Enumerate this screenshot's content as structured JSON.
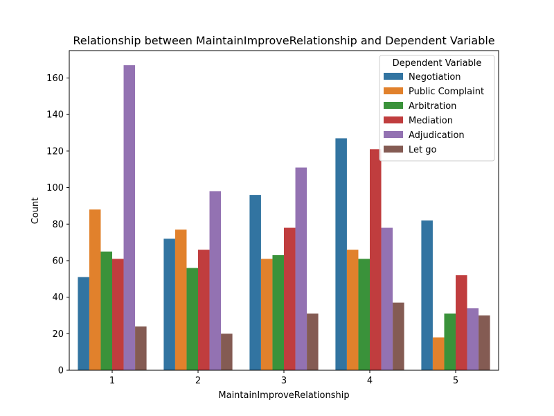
{
  "chart_data": {
    "type": "bar",
    "title": "Relationship between MaintainImproveRelationship and Dependent Variable",
    "xlabel": "MaintainImproveRelationship",
    "ylabel": "Count",
    "categories": [
      "1",
      "2",
      "3",
      "4",
      "5"
    ],
    "ylim": [
      0,
      175
    ],
    "yticks": [
      0,
      20,
      40,
      60,
      80,
      100,
      120,
      140,
      160
    ],
    "grid": false,
    "legend": {
      "title": "Dependent Variable",
      "placement": "top-right"
    },
    "series": [
      {
        "name": "Negotiation",
        "color": "#3274a1",
        "values": [
          51,
          72,
          96,
          127,
          82
        ]
      },
      {
        "name": "Public Complaint",
        "color": "#e1812c",
        "values": [
          88,
          77,
          61,
          66,
          18
        ]
      },
      {
        "name": "Arbitration",
        "color": "#3a923a",
        "values": [
          65,
          56,
          63,
          61,
          31
        ]
      },
      {
        "name": "Mediation",
        "color": "#c03d3e",
        "values": [
          61,
          66,
          78,
          121,
          52
        ]
      },
      {
        "name": "Adjudication",
        "color": "#9372b2",
        "values": [
          167,
          98,
          111,
          78,
          34
        ]
      },
      {
        "name": "Let go",
        "color": "#845b53",
        "values": [
          24,
          20,
          31,
          37,
          30
        ]
      }
    ]
  }
}
